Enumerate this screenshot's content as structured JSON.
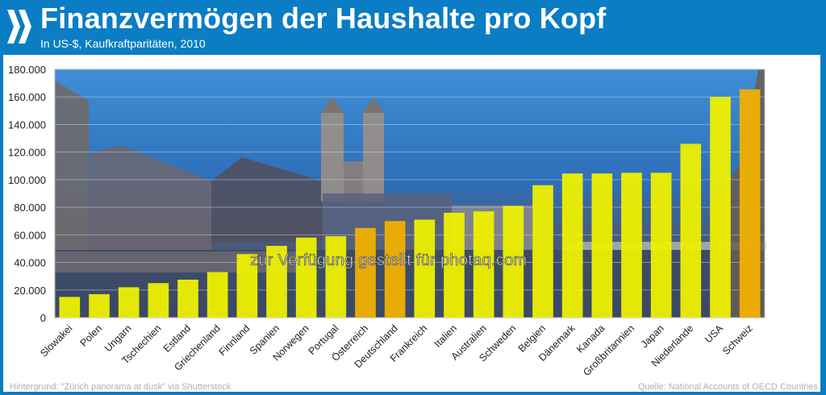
{
  "header": {
    "title": "Finanzvermögen der Haushalte pro Kopf",
    "subtitle": "In US-$, Kaufkraftparitäten, 2010",
    "logo_icon": "oecd-chevrons-logo"
  },
  "footer": {
    "background_credit": "Hintergrund: \"Zürich panorama at dusk\" via Shutterstock",
    "source": "Quelle: National Accounts of OECD Countries"
  },
  "watermark": "zur Verfügung gestellt für photaq.com",
  "colors": {
    "brand_blue": "#0a7dc4",
    "bar_default": "#eef000",
    "bar_highlight": "#f0b000"
  },
  "chart_data": {
    "type": "bar",
    "title": "Finanzvermögen der Haushalte pro Kopf",
    "subtitle": "In US-$, Kaufkraftparitäten, 2010",
    "xlabel": "",
    "ylabel": "",
    "ylim": [
      0,
      180000
    ],
    "yticks": [
      0,
      20000,
      40000,
      60000,
      80000,
      100000,
      120000,
      140000,
      160000,
      180000
    ],
    "ytick_labels": [
      "0",
      "20.000",
      "40.000",
      "60.000",
      "80.000",
      "100.000",
      "120.000",
      "140.000",
      "160.000",
      "180.000"
    ],
    "grid": true,
    "legend": "none",
    "categories": [
      "Slowakei",
      "Polen",
      "Ungarn",
      "Tschechien",
      "Estland",
      "Griechenland",
      "Finnland",
      "Spanien",
      "Norwegen",
      "Portugal",
      "Österreich",
      "Deutschland",
      "Frankreich",
      "Italien",
      "Australien",
      "Schweden",
      "Belgien",
      "Dänemark",
      "Kanada",
      "Großbritannien",
      "Japan",
      "Niederlande",
      "USA",
      "Schweiz"
    ],
    "values": [
      15000,
      17000,
      22000,
      25000,
      27500,
      33000,
      46000,
      52000,
      58000,
      59000,
      65000,
      70000,
      71000,
      76000,
      77000,
      81000,
      96000,
      104500,
      104500,
      105000,
      105000,
      126000,
      160000,
      165500
    ],
    "highlighted": [
      "Österreich",
      "Deutschland",
      "Schweiz"
    ]
  }
}
